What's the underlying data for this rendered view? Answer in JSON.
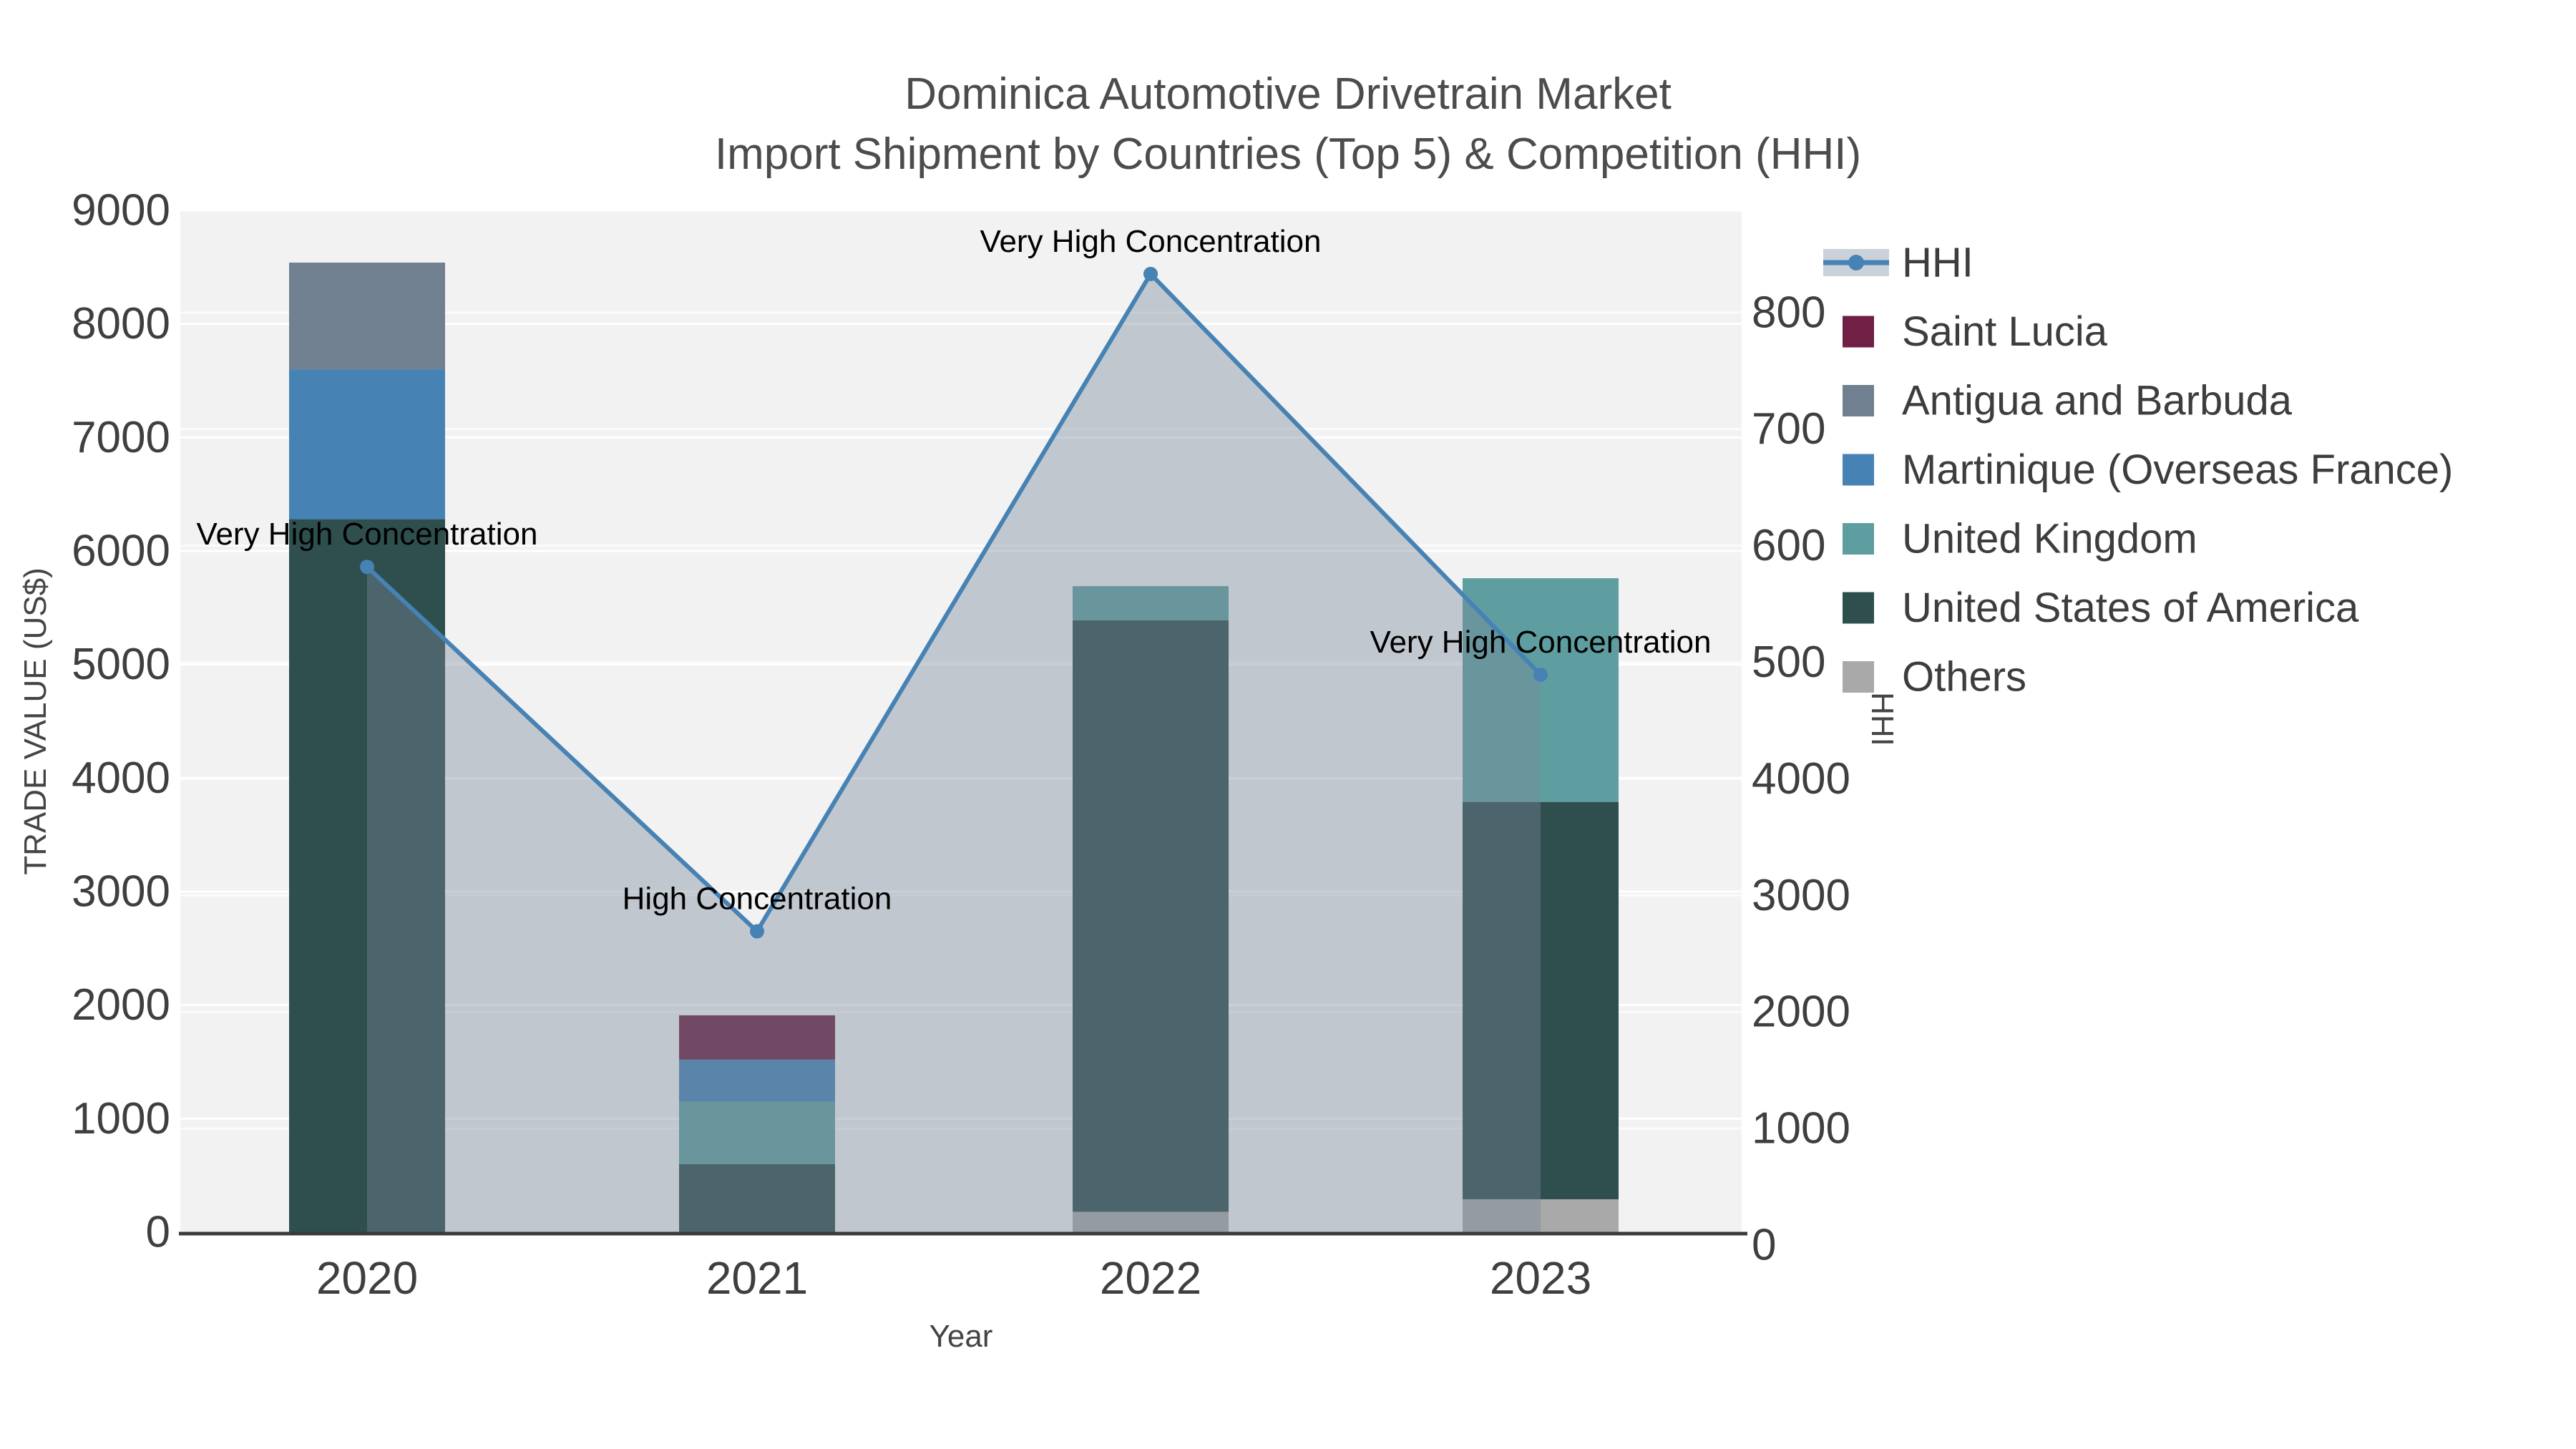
{
  "title": {
    "line1": "Dominica Automotive Drivetrain Market",
    "line2": "Import Shipment by Countries (Top 5) & Competition (HHI)"
  },
  "axes": {
    "y_left": {
      "title": "TRADE VALUE (US$)",
      "min": 0,
      "max": 9000,
      "tick_labels": [
        "0",
        "1000",
        "2000",
        "3000",
        "4000",
        "5000",
        "6000",
        "7000",
        "8000",
        "9000"
      ]
    },
    "y_right": {
      "title": "HHI",
      "tick_labels": [
        "0",
        "1000",
        "2000",
        "3000",
        "4000",
        "500",
        "600",
        "700",
        "800"
      ]
    },
    "x": {
      "title": "Year",
      "tick_labels": [
        "2020",
        "2021",
        "2022",
        "2023"
      ]
    }
  },
  "legend": {
    "items": [
      {
        "label": "HHI",
        "type": "line",
        "color": "#4682b4",
        "band_color": "#cbd1d9"
      },
      {
        "label": "Saint Lucia",
        "type": "swatch",
        "color": "#6f2044"
      },
      {
        "label": "Antigua and Barbuda",
        "type": "swatch",
        "color": "#708090"
      },
      {
        "label": "Martinique (Overseas France)",
        "type": "swatch",
        "color": "#4682b4"
      },
      {
        "label": "United Kingdom",
        "type": "swatch",
        "color": "#5f9ea0"
      },
      {
        "label": "United States of America",
        "type": "swatch",
        "color": "#2f4f4f"
      },
      {
        "label": "Others",
        "type": "swatch",
        "color": "#a9a9a9"
      }
    ]
  },
  "chart_data": {
    "type": "bar",
    "subtype": "stacked bars + HHI line with filled area on secondary axis",
    "title": "Dominica Automotive Drivetrain Market — Import Shipment by Countries (Top 5) & Competition (HHI)",
    "categories": [
      "2020",
      "2021",
      "2022",
      "2023"
    ],
    "xlabel": "Year",
    "ylabel": "TRADE VALUE (US$)",
    "ylim": [
      0,
      9000
    ],
    "grid": true,
    "legend_position": "top-right",
    "series": [
      {
        "name": "Others",
        "color": "#a9a9a9",
        "values": [
          0,
          0,
          180,
          290
        ]
      },
      {
        "name": "United States of America",
        "color": "#2f4f4f",
        "values": [
          6280,
          600,
          5210,
          3500
        ]
      },
      {
        "name": "United Kingdom",
        "color": "#5f9ea0",
        "values": [
          0,
          550,
          300,
          1970
        ]
      },
      {
        "name": "Martinique (Overseas France)",
        "color": "#4682b4",
        "values": [
          1320,
          370,
          0,
          0
        ]
      },
      {
        "name": "Antigua and Barbuda",
        "color": "#708090",
        "values": [
          940,
          0,
          0,
          0
        ]
      },
      {
        "name": "Saint Lucia",
        "color": "#6f2044",
        "values": [
          0,
          390,
          0,
          0
        ]
      }
    ],
    "stack_order_note": "series listed bottom-to-top of stack; bar totals 8540, 1910, 5690, 5760",
    "hhi_line": {
      "name": "HHI",
      "color": "#4682b4",
      "area_fill": "rgba(119,136,153,0.4)",
      "values": [
        5860,
        2650,
        8440,
        4910
      ],
      "annotations": [
        "Very High Concentration",
        "High Concentration",
        "Very High Concentration",
        "Very High Concentration"
      ]
    }
  }
}
